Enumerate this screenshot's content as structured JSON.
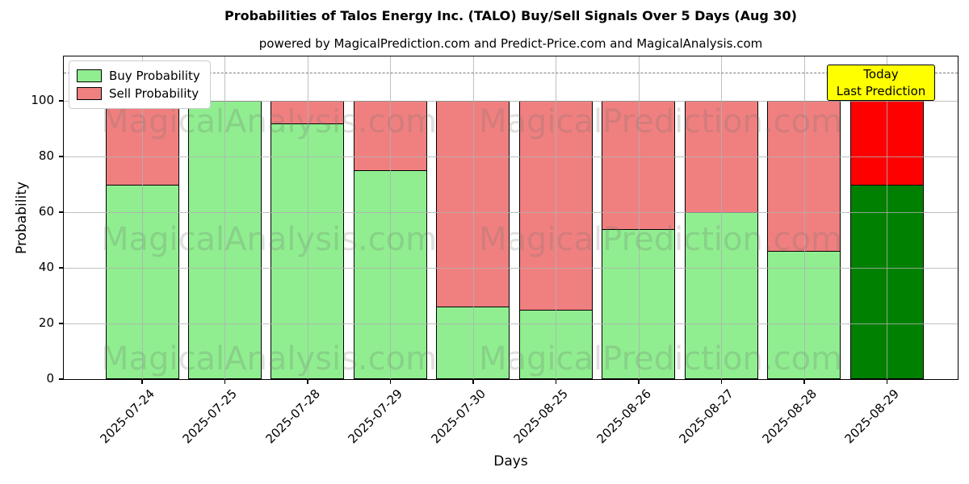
{
  "figure": {
    "title": "Probabilities of Talos Energy Inc. (TALO) Buy/Sell Signals Over 5 Days (Aug 30)",
    "subtitle": "powered by MagicalPrediction.com and Predict-Price.com and MagicalAnalysis.com"
  },
  "axes": {
    "xlabel": "Days",
    "ylabel": "Probability"
  },
  "watermarks": {
    "left": "MagicalAnalysis.com",
    "right": "MagicalPrediction.com"
  },
  "annotation": {
    "line1": "Today",
    "line2": "Last Prediction",
    "bg_color": "#FFFF00"
  },
  "chart_data": {
    "type": "bar",
    "stacked": true,
    "title": "Probabilities of Talos Energy Inc. (TALO) Buy/Sell Signals Over 5 Days (Aug 30)",
    "xlabel": "Days",
    "ylabel": "Probability",
    "categories": [
      "2025-07-24",
      "2025-07-25",
      "2025-07-28",
      "2025-07-29",
      "2025-07-30",
      "2025-08-25",
      "2025-08-26",
      "2025-08-27",
      "2025-08-28",
      "2025-08-29"
    ],
    "series": [
      {
        "name": "Buy Probability",
        "color": "#90EE90",
        "values": [
          70,
          100,
          92,
          75,
          26,
          25,
          54,
          60,
          46,
          70
        ]
      },
      {
        "name": "Sell Probability",
        "color": "#F08080",
        "values": [
          30,
          0,
          8,
          25,
          74,
          75,
          46,
          40,
          54,
          30
        ]
      }
    ],
    "today_index": 9,
    "today_colors": {
      "buy": "#008000",
      "sell": "#FF0000"
    },
    "bar_edge_color": "#000000",
    "yticks": [
      0,
      20,
      40,
      60,
      80,
      100
    ],
    "ylim": [
      0,
      116
    ],
    "dashed_line_y": 110,
    "grid": true,
    "grid_color": "#b0b0b0",
    "legend_position": "upper left"
  }
}
